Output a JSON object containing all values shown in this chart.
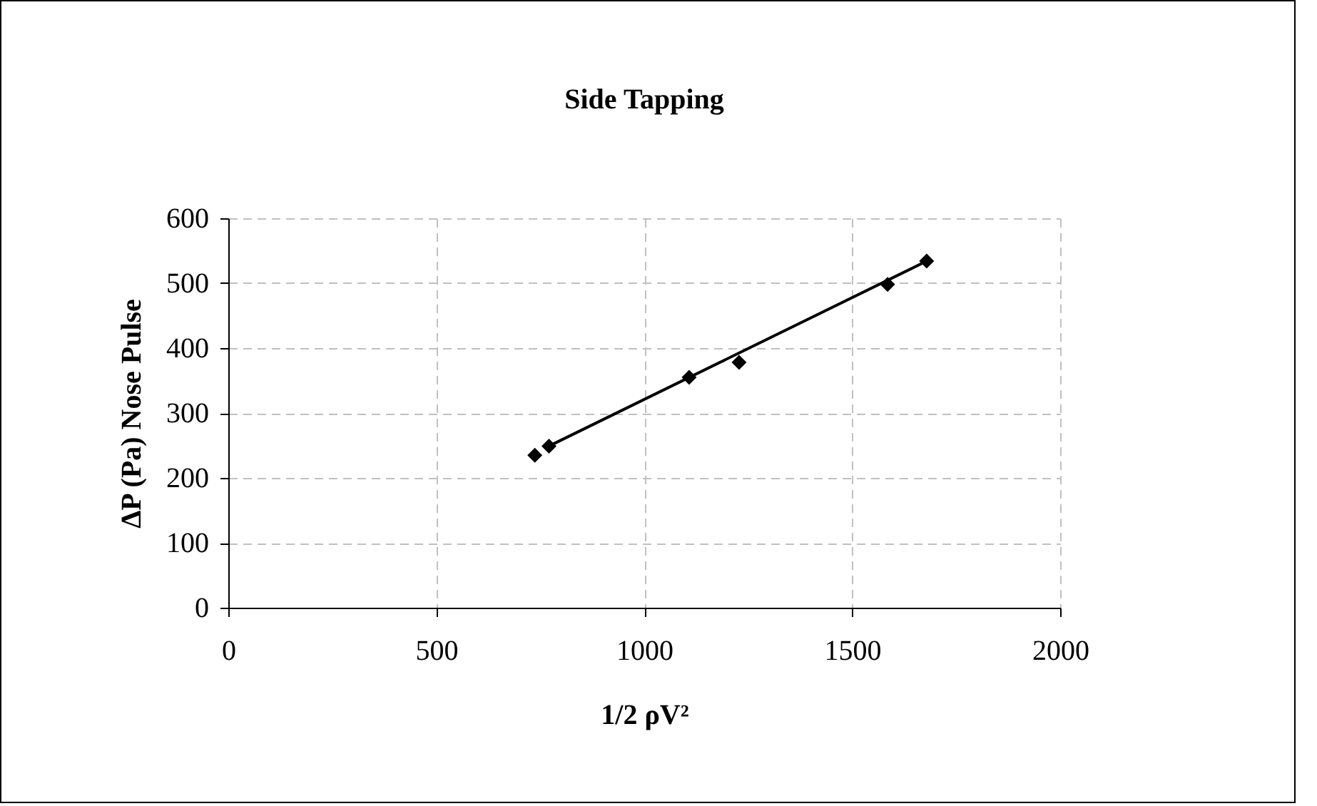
{
  "chart_data": {
    "type": "scatter",
    "title": "Side Tapping",
    "xlabel": "1/2 ρV²",
    "ylabel": "ΔP (Pa) Nose Pulse",
    "xlim": [
      0,
      2000
    ],
    "xticks": [
      0,
      500,
      1000,
      1500,
      2000
    ],
    "ylim": [
      0,
      600
    ],
    "yticks": [
      0,
      100,
      200,
      300,
      400,
      500,
      600
    ],
    "grid": true,
    "series": [
      {
        "marker": "diamond",
        "color": "#000000",
        "x": [
          737,
          771,
          1108,
          1228,
          1585,
          1679
        ],
        "values": [
          235,
          249,
          355,
          378,
          498,
          534
        ]
      },
      {
        "type": "line",
        "color": "#000000",
        "x": [
          771,
          1679
        ],
        "values": [
          249,
          534
        ]
      }
    ]
  }
}
